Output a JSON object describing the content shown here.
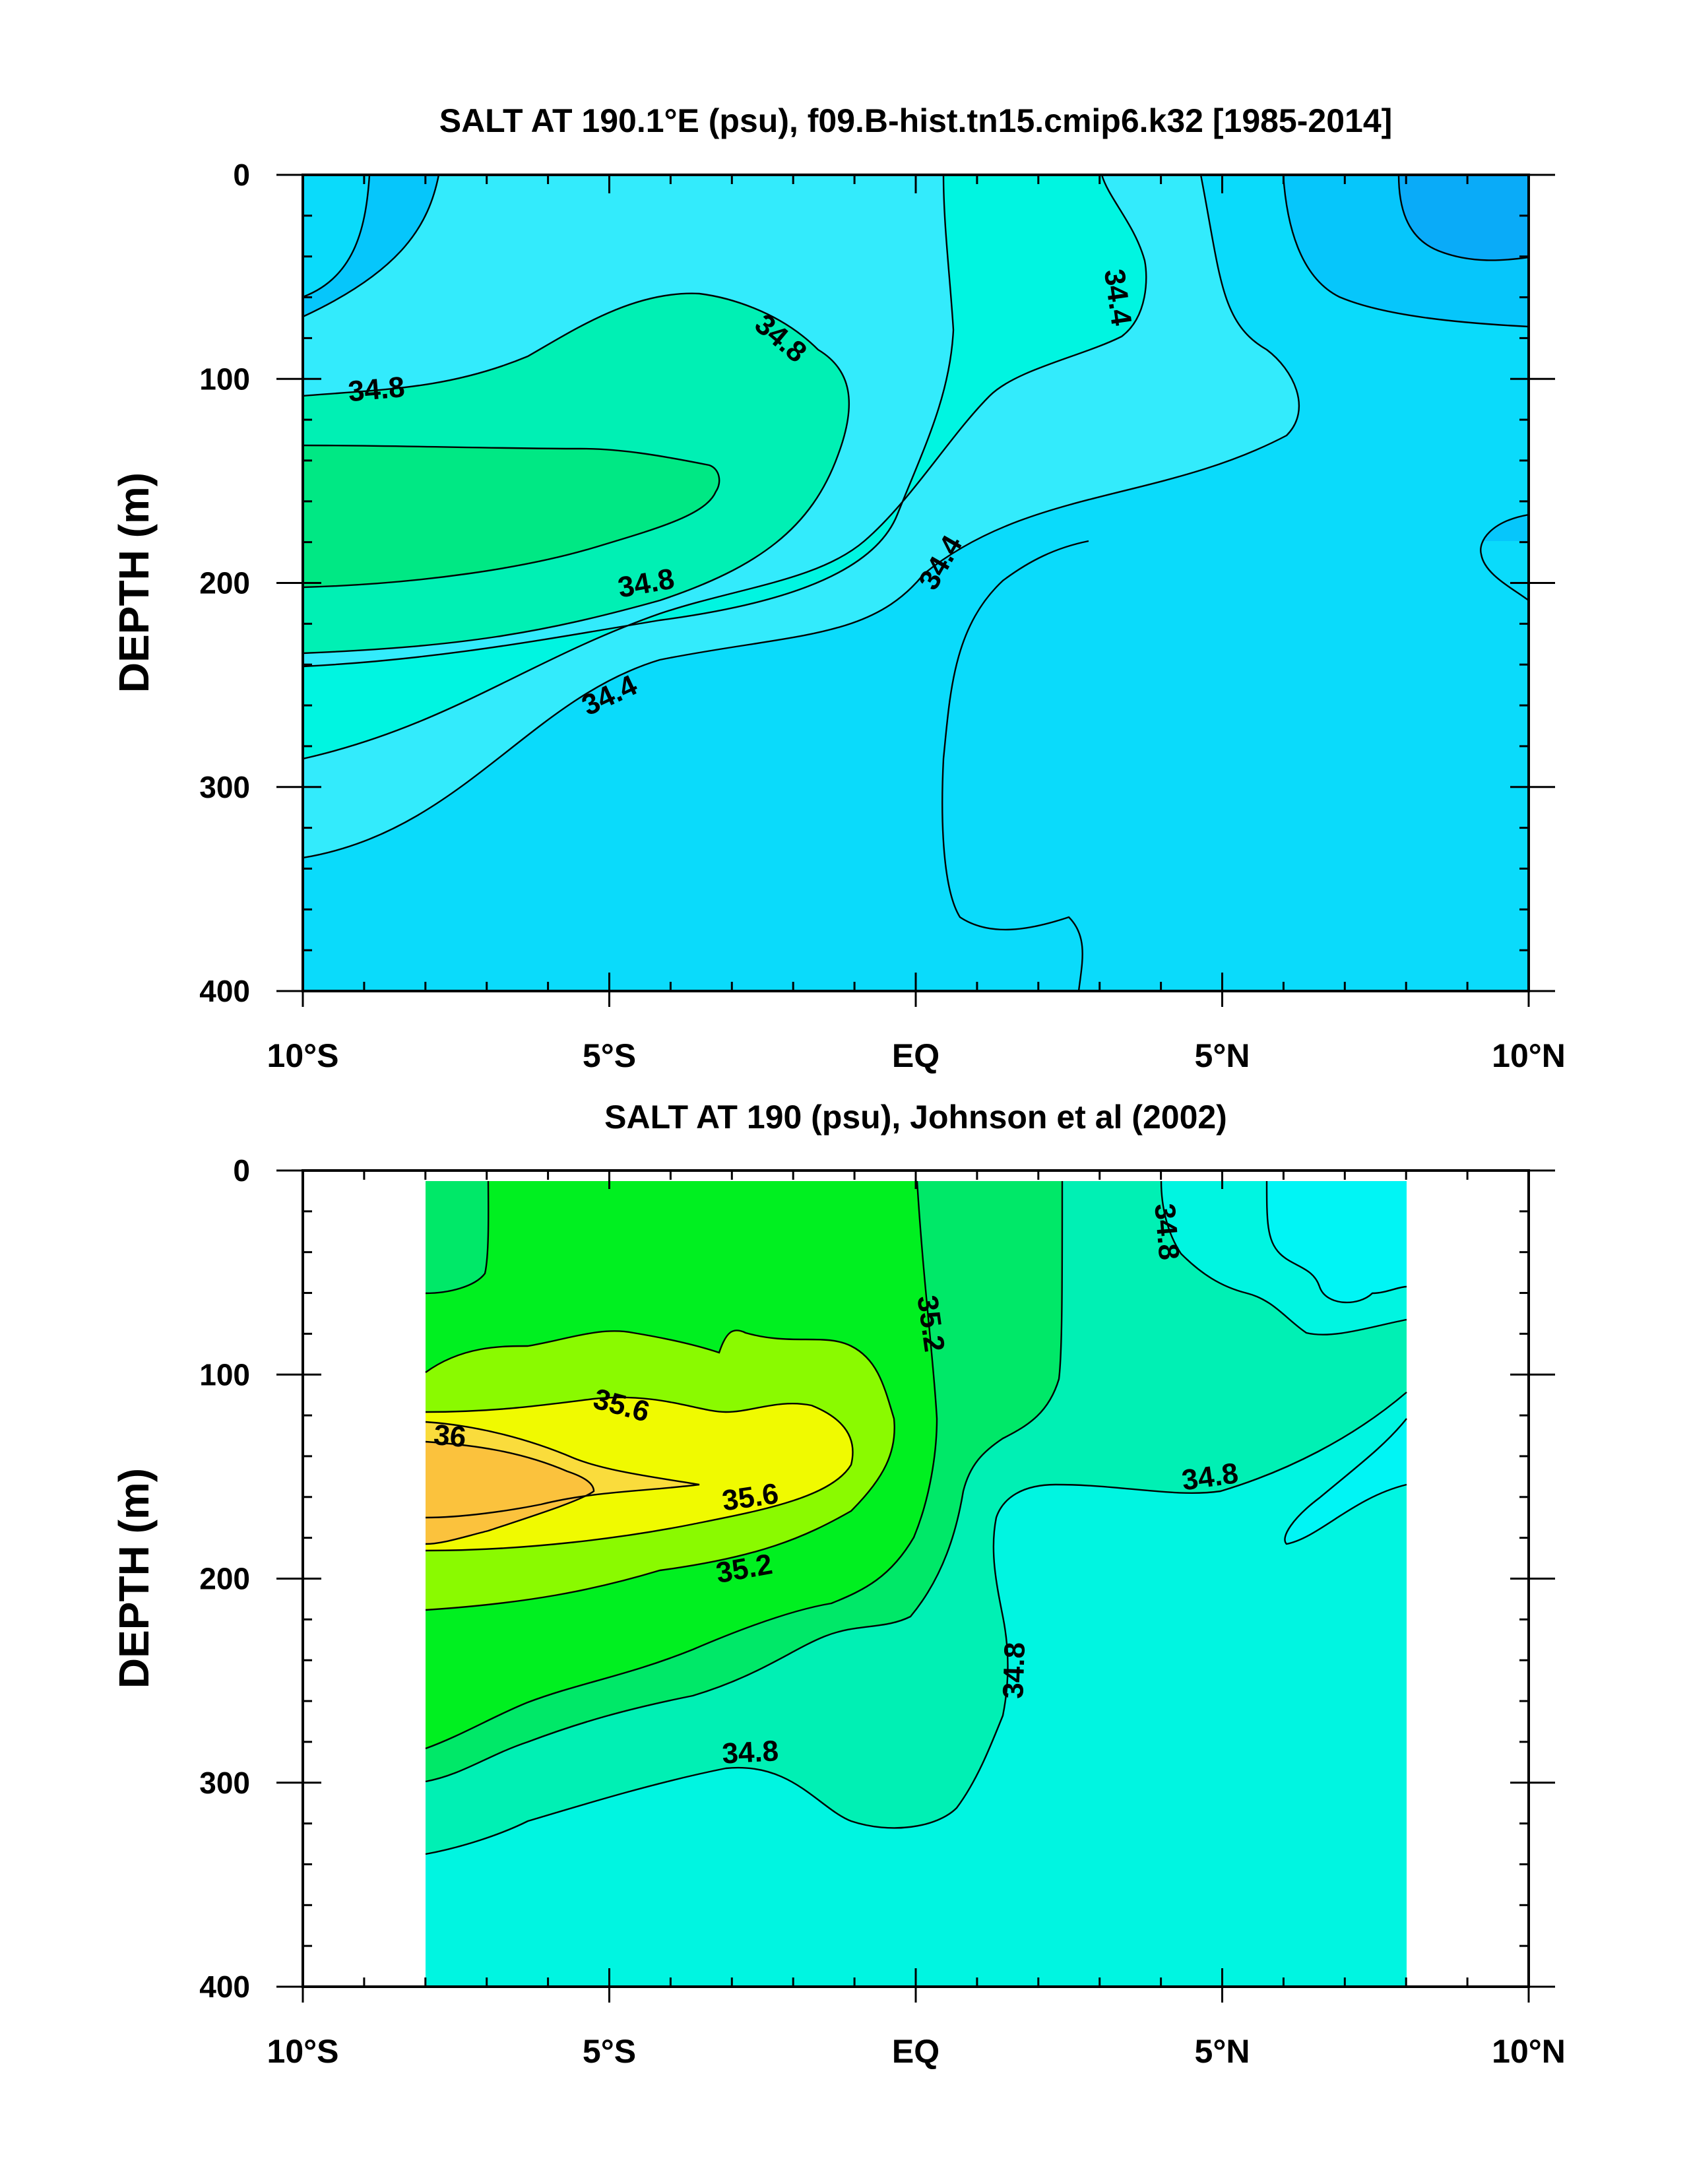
{
  "chart_data": [
    {
      "type": "contour",
      "title": "SALT AT 190.1°E (psu), f09.B-hist.tn15.cmip6.k32 [1985-2014]",
      "ylabel": "DEPTH (m)",
      "xlim": [
        -10,
        10
      ],
      "ylim": [
        0,
        400
      ],
      "y_reversed": true,
      "x_ticks": [
        {
          "value": -10,
          "label": "10°S"
        },
        {
          "value": -5,
          "label": "5°S"
        },
        {
          "value": 0,
          "label": "EQ"
        },
        {
          "value": 5,
          "label": "5°N"
        },
        {
          "value": 10,
          "label": "10°N"
        }
      ],
      "y_ticks": [
        {
          "value": 0,
          "label": "0"
        },
        {
          "value": 100,
          "label": "100"
        },
        {
          "value": 200,
          "label": "200"
        },
        {
          "value": 300,
          "label": "300"
        },
        {
          "value": 400,
          "label": "400"
        }
      ],
      "contour_interval": 0.2,
      "contour_labels": [
        {
          "text": "34.4",
          "lon": 3.3,
          "depth": 60,
          "angle": 82
        },
        {
          "text": "34.8",
          "lon": -2.2,
          "depth": 80,
          "angle": 40
        },
        {
          "text": "34.8",
          "lon": -8.8,
          "depth": 105,
          "angle": -5
        },
        {
          "text": "34.8",
          "lon": -4.4,
          "depth": 200,
          "angle": -10
        },
        {
          "text": "34.4",
          "lon": 0.4,
          "depth": 190,
          "angle": -60
        },
        {
          "text": "34.4",
          "lon": -5.0,
          "depth": 255,
          "angle": -25
        }
      ]
    },
    {
      "type": "contour",
      "title": "SALT AT 190 (psu), Johnson et al (2002)",
      "ylabel": "DEPTH (m)",
      "xlim": [
        -10,
        10
      ],
      "ylim": [
        0,
        400
      ],
      "y_reversed": true,
      "data_lon_range": [
        -8,
        8
      ],
      "x_ticks": [
        {
          "value": -10,
          "label": "10°S"
        },
        {
          "value": -5,
          "label": "5°S"
        },
        {
          "value": 0,
          "label": "EQ"
        },
        {
          "value": 5,
          "label": "5°N"
        },
        {
          "value": 10,
          "label": "10°N"
        }
      ],
      "y_ticks": [
        {
          "value": 0,
          "label": "0"
        },
        {
          "value": 100,
          "label": "100"
        },
        {
          "value": 200,
          "label": "200"
        },
        {
          "value": 300,
          "label": "300"
        },
        {
          "value": 400,
          "label": "400"
        }
      ],
      "contour_interval": 0.2,
      "contour_labels": [
        {
          "text": "34.8",
          "lon": 4.1,
          "depth": 30,
          "angle": 85
        },
        {
          "text": "35.2",
          "lon": 0.25,
          "depth": 75,
          "angle": 82
        },
        {
          "text": "35.6",
          "lon": -4.8,
          "depth": 115,
          "angle": 15
        },
        {
          "text": "36",
          "lon": -7.6,
          "depth": 130,
          "angle": 5
        },
        {
          "text": "35.6",
          "lon": -2.7,
          "depth": 160,
          "angle": -8
        },
        {
          "text": "35.2",
          "lon": -2.8,
          "depth": 195,
          "angle": -10
        },
        {
          "text": "34.8",
          "lon": 4.8,
          "depth": 150,
          "angle": -8
        },
        {
          "text": "34.8",
          "lon": 1.6,
          "depth": 245,
          "angle": -88
        },
        {
          "text": "34.8",
          "lon": -2.7,
          "depth": 285,
          "angle": -3
        }
      ]
    }
  ]
}
